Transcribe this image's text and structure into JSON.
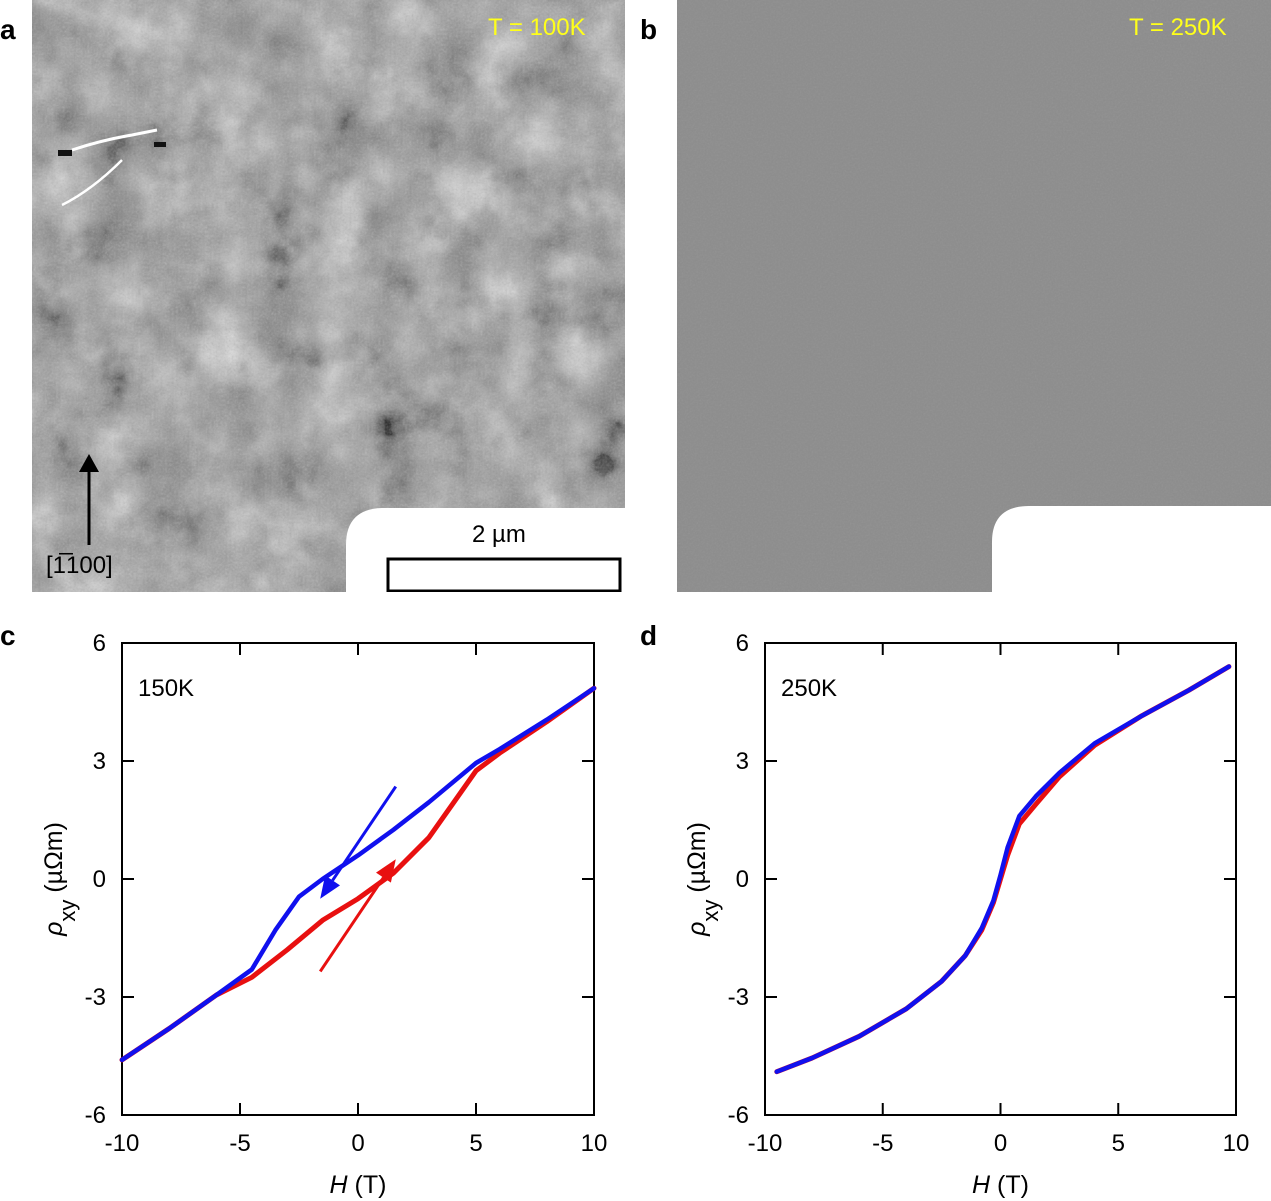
{
  "panels": {
    "a": {
      "letter": "a",
      "temperature": "T = 100K",
      "direction_label": "[1̅100]",
      "scale_bar_label": "2 µm"
    },
    "b": {
      "letter": "b",
      "temperature": "T = 250K"
    },
    "c": {
      "letter": "c"
    },
    "d": {
      "letter": "d"
    }
  },
  "colors": {
    "sweep_down": "#1010ee",
    "sweep_up": "#e81010",
    "temp_text": "#ffff1a"
  },
  "chart_data": [
    {
      "panel": "c",
      "type": "line",
      "annotation": "150K",
      "xlabel_italic": "H",
      "xlabel_unit": " (T)",
      "ylabel_symbol": "ρ",
      "ylabel_sub": "xy",
      "ylabel_unit": " (µΩm)",
      "xlim": [
        -10,
        10
      ],
      "ylim": [
        -6,
        6
      ],
      "xticks": [
        -10,
        -5,
        0,
        5,
        10
      ],
      "yticks": [
        -6,
        -3,
        0,
        3,
        6
      ],
      "xtick_labels": [
        "-10",
        "-5",
        "0",
        "5",
        "10"
      ],
      "ytick_labels": [
        "-6",
        "-3",
        "0",
        "3",
        "6"
      ],
      "series": [
        {
          "color": "#e81010",
          "x": [
            -10,
            -8,
            -6,
            -4.5,
            -3,
            -1.5,
            0,
            1.5,
            3,
            4,
            5,
            6,
            8,
            10
          ],
          "y": [
            -4.6,
            -3.8,
            -2.95,
            -2.5,
            -1.8,
            -1.05,
            -0.5,
            0.15,
            1.05,
            1.9,
            2.75,
            3.2,
            4.0,
            4.85
          ]
        },
        {
          "color": "#1010ee",
          "x": [
            -10,
            -8,
            -6,
            -4.5,
            -3.5,
            -2.5,
            -1.5,
            0,
            1.5,
            3,
            5,
            6,
            8,
            10
          ],
          "y": [
            -4.6,
            -3.8,
            -2.95,
            -2.3,
            -1.3,
            -0.45,
            0.0,
            0.6,
            1.25,
            1.95,
            2.95,
            3.3,
            4.05,
            4.85
          ]
        }
      ],
      "arrows": [
        {
          "color": "#1010ee",
          "from": [
            1.6,
            2.35
          ],
          "to": [
            -1.6,
            -0.5
          ]
        },
        {
          "color": "#e81010",
          "from": [
            -1.6,
            -2.35
          ],
          "to": [
            1.6,
            0.5
          ]
        }
      ]
    },
    {
      "panel": "d",
      "type": "line",
      "annotation": "250K",
      "xlabel_italic": "H",
      "xlabel_unit": " (T)",
      "ylabel_symbol": "ρ",
      "ylabel_sub": "xy",
      "ylabel_unit": " (µΩm)",
      "xlim": [
        -10,
        10
      ],
      "ylim": [
        -6,
        6
      ],
      "xticks": [
        -10,
        -5,
        0,
        5,
        10
      ],
      "yticks": [
        -6,
        -3,
        0,
        3,
        6
      ],
      "xtick_labels": [
        "-10",
        "-5",
        "0",
        "5",
        "10"
      ],
      "ytick_labels": [
        "-6",
        "-3",
        "0",
        "3",
        "6"
      ],
      "series": [
        {
          "color": "#e81010",
          "x": [
            -9.5,
            -8,
            -6,
            -4,
            -2.5,
            -1.5,
            -0.8,
            -0.3,
            0,
            0.3,
            0.8,
            1.5,
            2.5,
            4,
            6,
            8,
            9.7
          ],
          "y": [
            -4.9,
            -4.55,
            -4.0,
            -3.3,
            -2.6,
            -1.95,
            -1.3,
            -0.6,
            0.0,
            0.6,
            1.4,
            1.9,
            2.6,
            3.4,
            4.15,
            4.8,
            5.4
          ]
        },
        {
          "color": "#1010ee",
          "x": [
            -9.5,
            -8,
            -6,
            -4,
            -2.5,
            -1.5,
            -0.8,
            -0.3,
            0,
            0.3,
            0.8,
            1.5,
            2.5,
            4,
            6,
            8,
            9.7
          ],
          "y": [
            -4.9,
            -4.55,
            -4.0,
            -3.3,
            -2.6,
            -1.95,
            -1.25,
            -0.55,
            0.1,
            0.8,
            1.6,
            2.1,
            2.7,
            3.45,
            4.15,
            4.8,
            5.4
          ]
        }
      ]
    }
  ]
}
